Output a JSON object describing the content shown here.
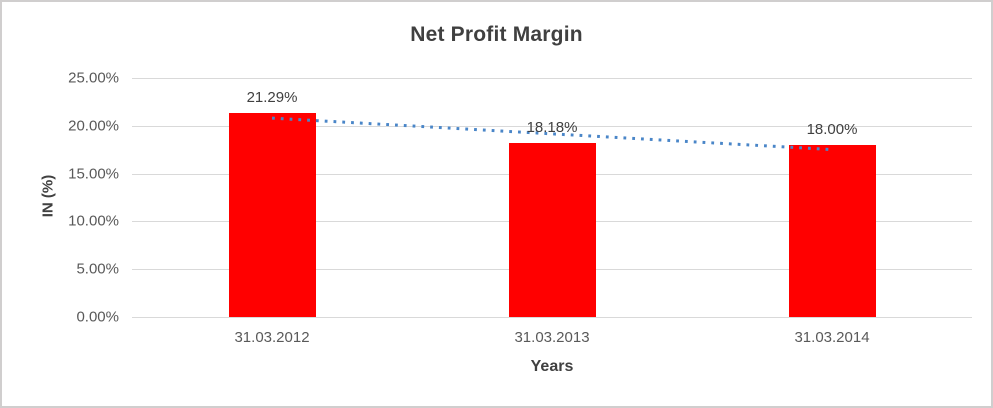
{
  "chart_data": {
    "type": "bar",
    "title": "Net Profit Margin",
    "categories": [
      "31.03.2012",
      "31.03.2013",
      "31.03.2014"
    ],
    "series": [
      {
        "name": "Net Profit Margin",
        "values": [
          21.29,
          18.18,
          18.0
        ],
        "data_labels": [
          "21.29%",
          "18.18%",
          "18.00%"
        ],
        "color": "#ff0000"
      }
    ],
    "xlabel": "Years",
    "ylabel": "IN (%)",
    "ylim": [
      0,
      25
    ],
    "ytick_step": 5,
    "yticks": [
      "0.00%",
      "5.00%",
      "10.00%",
      "15.00%",
      "20.00%",
      "25.00%"
    ],
    "grid": true,
    "legend": "none",
    "trendline": {
      "type": "linear",
      "style": "dotted",
      "color": "#4a86c8",
      "fitted_endpoint_values": [
        20.8,
        17.51
      ]
    },
    "colors": {
      "bar": "#ff0000",
      "gridline": "#d9d9d9",
      "tick_text": "#595959",
      "title_text": "#404040",
      "trendline": "#4a86c8"
    }
  }
}
